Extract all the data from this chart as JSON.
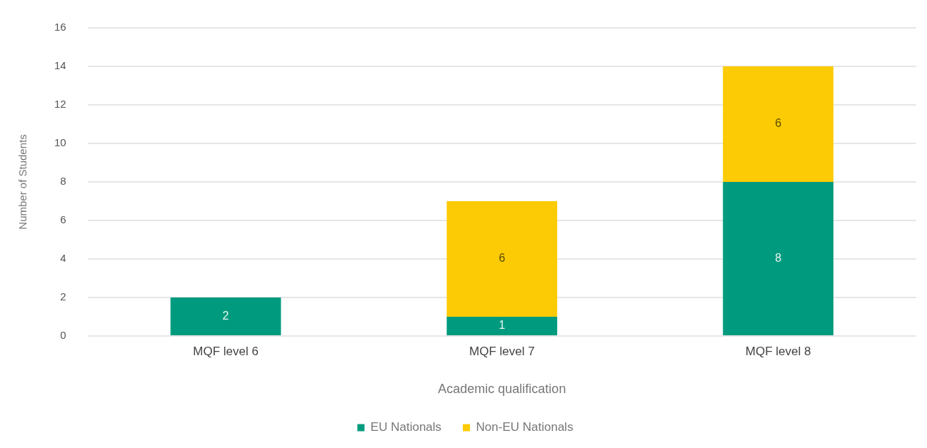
{
  "chart_data": {
    "type": "bar",
    "stacked": true,
    "xlabel": "Academic qualification",
    "ylabel": "Number of Students",
    "categories": [
      "MQF level 6",
      "MQF level 7",
      "MQF level 8"
    ],
    "series": [
      {
        "name": "EU Nationals",
        "color": "#009b7e",
        "values": [
          2,
          1,
          8
        ],
        "value_labels": [
          "2",
          "1",
          "8"
        ]
      },
      {
        "name": "Non-EU Nationals",
        "color": "#fccb05",
        "values": [
          0,
          6,
          6
        ],
        "value_labels": [
          null,
          "6",
          "6"
        ]
      }
    ],
    "ylim": [
      0,
      16
    ],
    "yticks": [
      0,
      2,
      4,
      6,
      8,
      10,
      12,
      14,
      16
    ],
    "grid": "y",
    "legend": "bottom"
  }
}
